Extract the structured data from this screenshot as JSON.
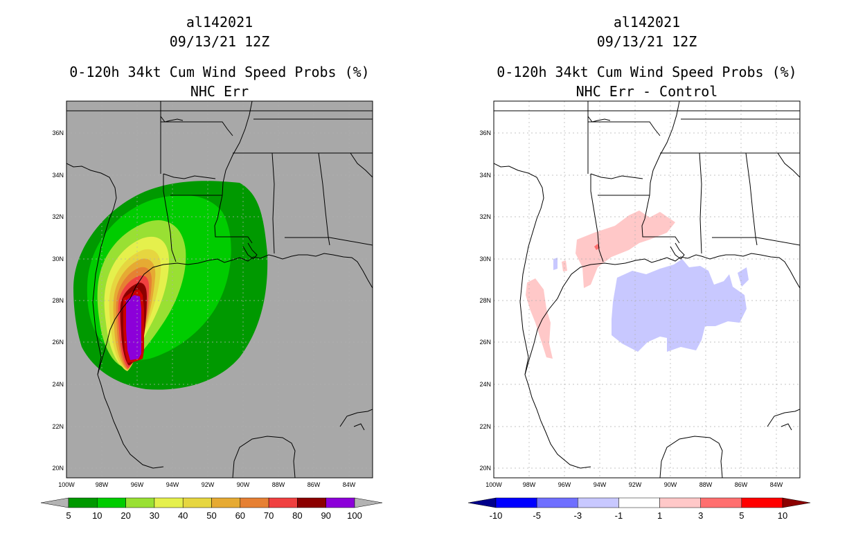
{
  "left": {
    "storm_id": "al142021",
    "datetime": "09/13/21 12Z",
    "product": "0-120h 34kt Cum Wind Speed Probs (%)",
    "subtitle": "NHC Err",
    "colorbar": {
      "labels": [
        "5",
        "10",
        "20",
        "30",
        "40",
        "50",
        "60",
        "70",
        "80",
        "90",
        "100"
      ],
      "colors": [
        "#009900",
        "#00cc00",
        "#99e033",
        "#e5f04c",
        "#e6d640",
        "#e6aa33",
        "#e68033",
        "#f04040",
        "#8b0000",
        "#8c00d9"
      ],
      "under_color": "#b3b3b3",
      "over_color": "#b3b3b3"
    }
  },
  "right": {
    "storm_id": "al142021",
    "datetime": "09/13/21 12Z",
    "product": "0-120h 34kt Cum Wind Speed Probs (%)",
    "subtitle": "NHC Err - Control",
    "colorbar": {
      "labels": [
        "-10",
        "-5",
        "-3",
        "-1",
        "1",
        "3",
        "5",
        "10"
      ],
      "colors": [
        "#0000ff",
        "#6f6fff",
        "#c8c8ff",
        "#ffffff",
        "#ffc8c8",
        "#ff6f6f",
        "#ff0000"
      ],
      "under_color": "#00008b",
      "over_color": "#8b0000"
    }
  },
  "lat_labels": [
    "36N",
    "34N",
    "32N",
    "30N",
    "28N",
    "26N",
    "24N",
    "22N",
    "20N"
  ],
  "lon_labels": [
    "100W",
    "98W",
    "96W",
    "94W",
    "92W",
    "90W",
    "88W",
    "86W",
    "84W"
  ],
  "map_colors": {
    "land_background_left": "#a8a8a8",
    "land_background_right": "#ffffff",
    "coastline": "#000000",
    "grid": "#b0b0b0"
  }
}
